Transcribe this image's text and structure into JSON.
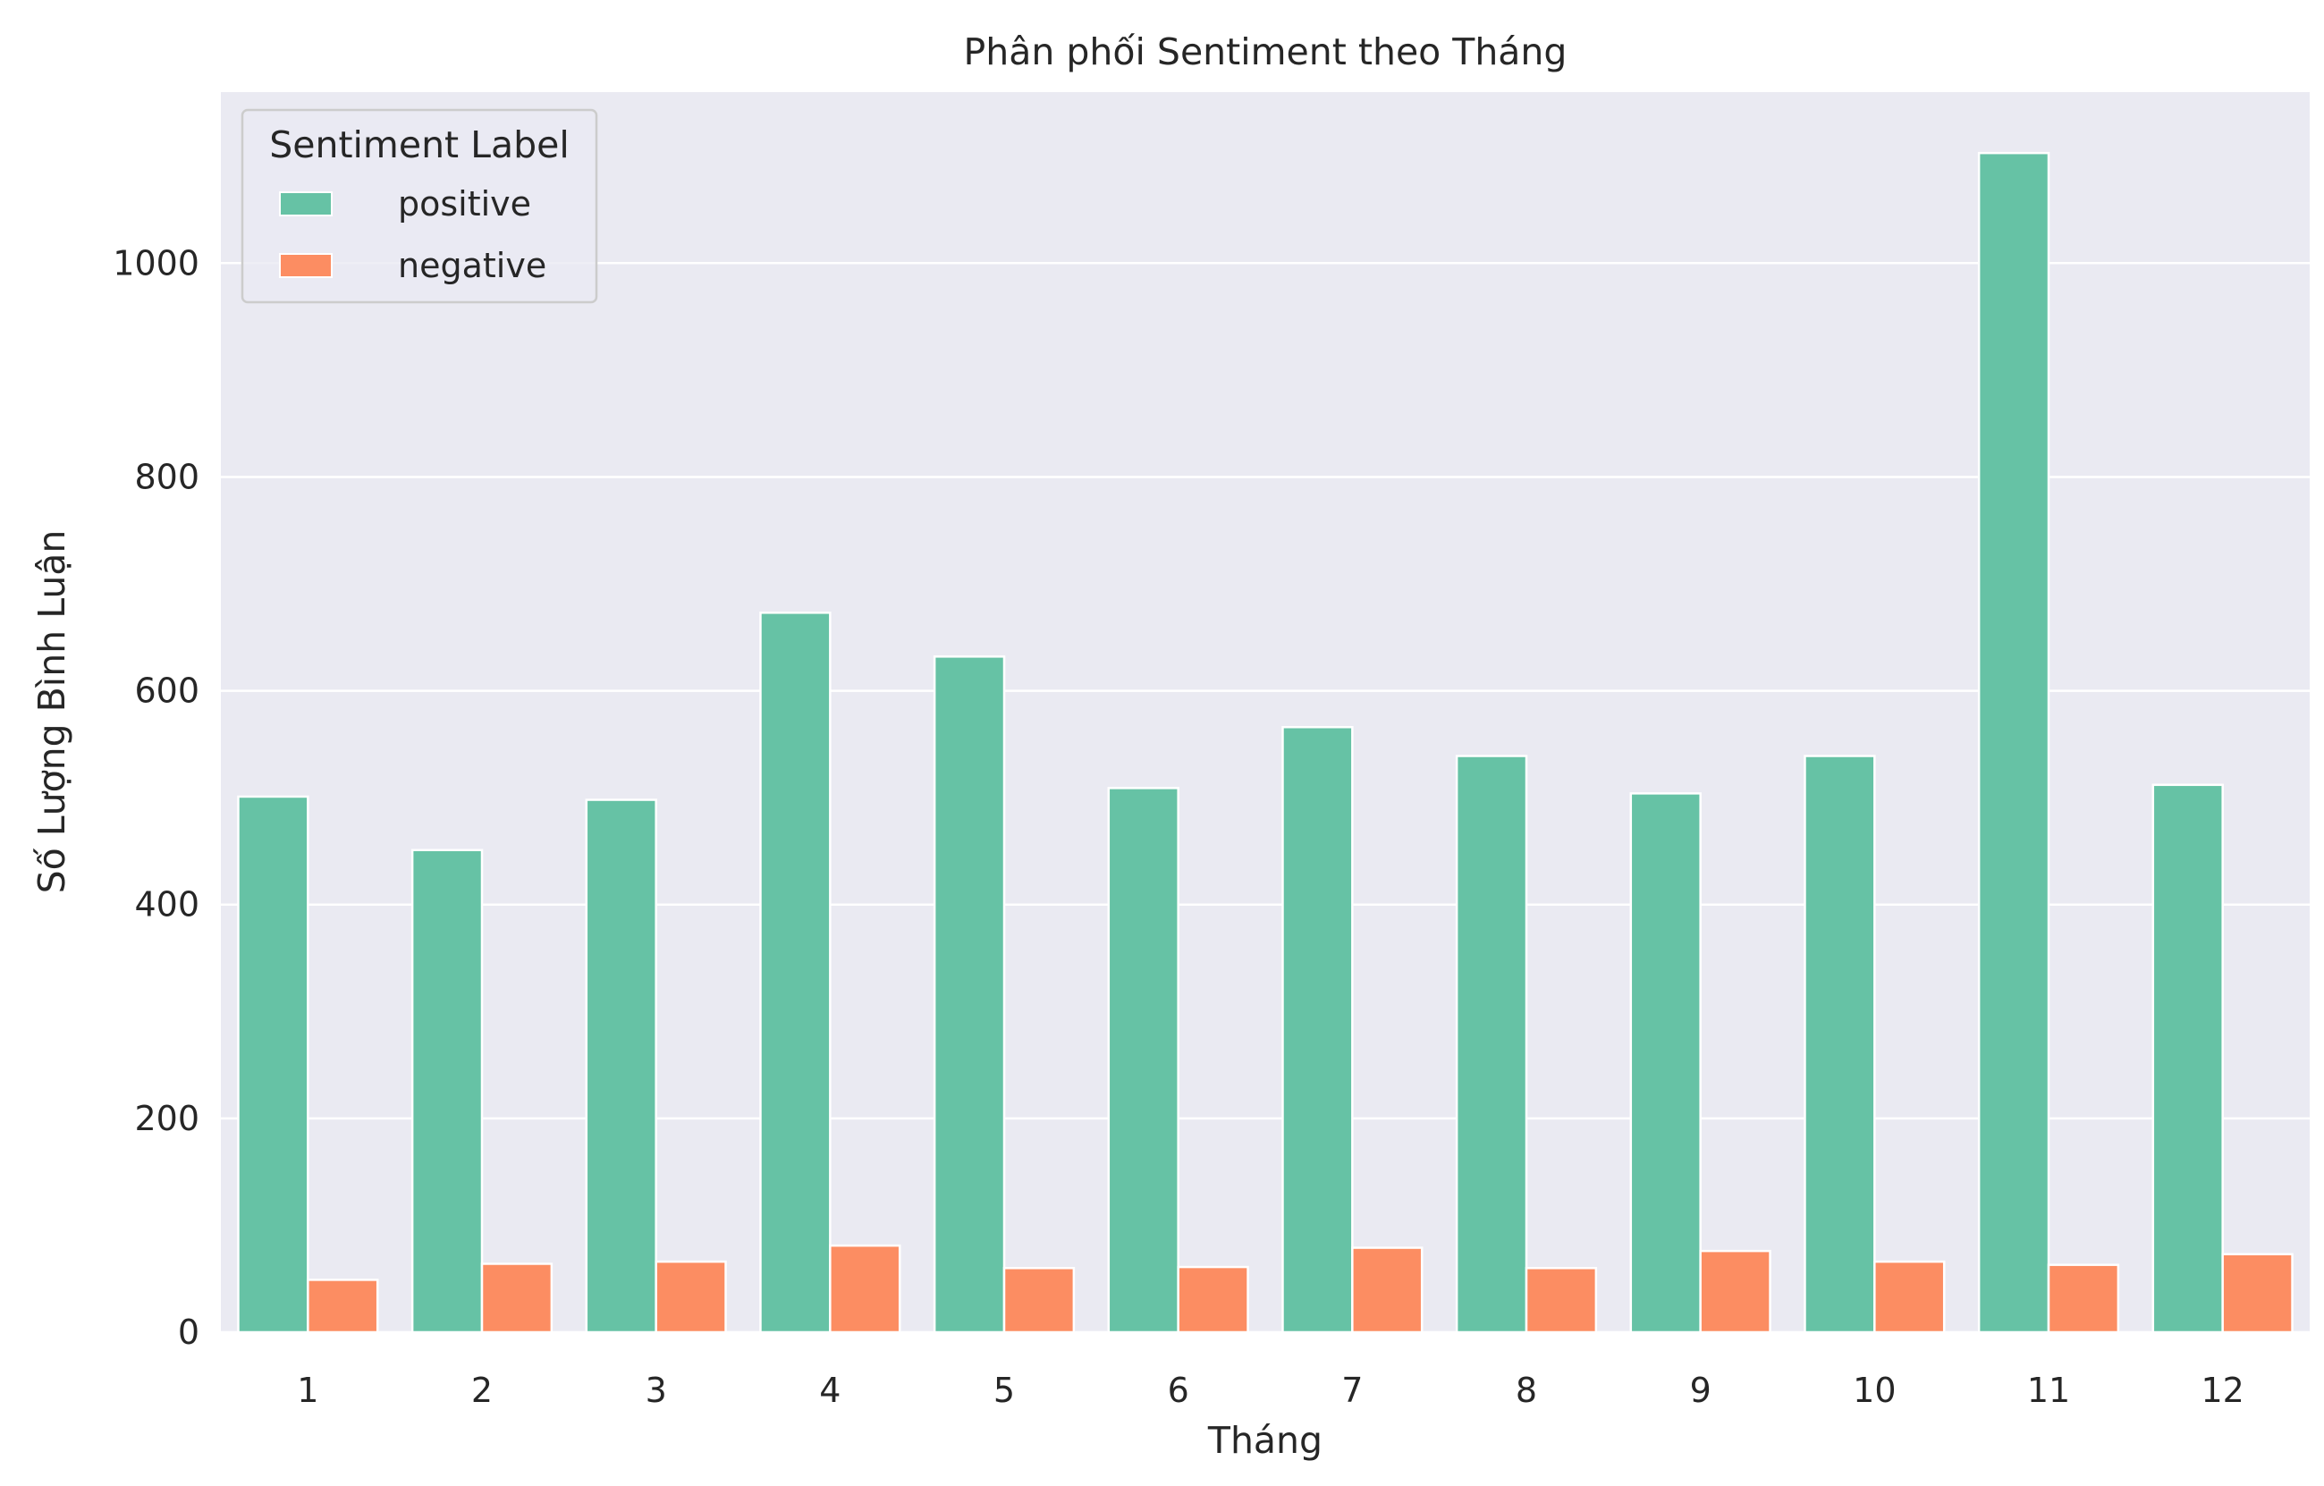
{
  "chart_data": {
    "type": "bar",
    "title": "Phân phối Sentiment theo Tháng",
    "xlabel": "Tháng",
    "ylabel": "Số Lượng Bình Luận",
    "categories": [
      "1",
      "2",
      "3",
      "4",
      "5",
      "6",
      "7",
      "8",
      "9",
      "10",
      "11",
      "12"
    ],
    "series": [
      {
        "name": "positive",
        "color": "#66c2a5",
        "values": [
          501,
          451,
          498,
          673,
          632,
          509,
          566,
          539,
          504,
          539,
          1103,
          512
        ]
      },
      {
        "name": "negative",
        "color": "#fc8d62",
        "values": [
          49,
          64,
          66,
          81,
          60,
          61,
          79,
          60,
          76,
          66,
          63,
          73
        ]
      }
    ],
    "ylim": [
      0,
      1160
    ],
    "yticks": [
      0,
      200,
      400,
      600,
      800,
      1000
    ],
    "legend": {
      "title": "Sentiment Label",
      "position": "top-left"
    },
    "grid": true,
    "background": "#eaeaf2"
  }
}
